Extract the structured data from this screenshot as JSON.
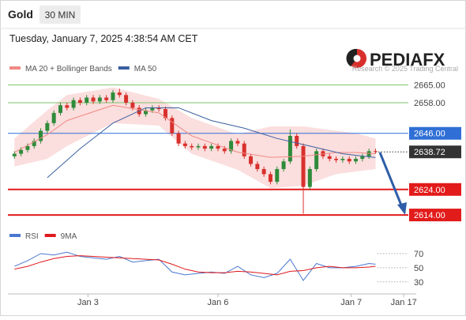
{
  "header": {
    "symbol": "Gold",
    "timeframe": "30 MIN",
    "timestamp": "Tuesday, January 7, 2025 4:38:54 AM CET"
  },
  "branding": {
    "logo": "PEDIAFX",
    "copyright": "Research © 2025 Trading Central"
  },
  "chart_data": [
    {
      "type": "candlestick",
      "open": [
        2637,
        2638,
        2639.5,
        2641,
        2643,
        2647,
        2650,
        2654,
        2657,
        2656,
        2659,
        2658,
        2660,
        2658.5,
        2660,
        2659,
        2662,
        2661,
        2658,
        2656,
        2653.5,
        2655,
        2656,
        2655.5,
        2652,
        2646,
        2642,
        2641,
        2640.5,
        2641,
        2640,
        2641,
        2640,
        2639,
        2643,
        2642,
        2637,
        2634,
        2632,
        2630,
        2627,
        2632,
        2635,
        2645,
        2641,
        2625,
        2632,
        2639,
        2637,
        2636,
        2635.5,
        2636,
        2635,
        2636,
        2637,
        2639
      ],
      "high": [
        2639,
        2640.5,
        2642,
        2644,
        2648,
        2651,
        2655,
        2658,
        2658,
        2660,
        2660,
        2661,
        2661,
        2661,
        2661,
        2663,
        2663.5,
        2662,
        2659,
        2657,
        2656,
        2657,
        2657,
        2656.5,
        2653,
        2647,
        2643,
        2642,
        2642,
        2642,
        2642,
        2642,
        2641,
        2644,
        2644,
        2643,
        2638,
        2635,
        2633,
        2631,
        2633,
        2636,
        2647.5,
        2646,
        2642,
        2633,
        2640,
        2640,
        2638,
        2637,
        2637,
        2637,
        2637,
        2638,
        2640,
        2640
      ],
      "low": [
        2636,
        2637,
        2638.5,
        2640,
        2642,
        2646,
        2649,
        2653,
        2655,
        2655,
        2657,
        2657,
        2657.5,
        2657.5,
        2658,
        2658,
        2660,
        2657,
        2655,
        2652.5,
        2652.5,
        2654,
        2654.5,
        2651,
        2645,
        2641,
        2640,
        2639.5,
        2639.5,
        2639,
        2639,
        2639,
        2638,
        2638,
        2641,
        2636,
        2633,
        2631,
        2629,
        2626,
        2626,
        2631,
        2634,
        2640,
        2614.5,
        2624,
        2631,
        2636,
        2635,
        2634.5,
        2634.5,
        2634,
        2634,
        2635,
        2636,
        2638
      ],
      "close": [
        2638,
        2639.5,
        2641,
        2643,
        2647,
        2650,
        2654,
        2657,
        2656,
        2659,
        2658,
        2660,
        2658.5,
        2660,
        2659,
        2662,
        2661,
        2658,
        2656,
        2653.5,
        2655,
        2656,
        2655.5,
        2652,
        2646,
        2642,
        2641,
        2640.5,
        2641,
        2640,
        2641,
        2640,
        2639,
        2643,
        2642,
        2637,
        2634,
        2632,
        2630,
        2627,
        2632,
        2635,
        2645,
        2641,
        2625,
        2632,
        2639,
        2637,
        2636,
        2635.5,
        2636,
        2635,
        2636,
        2637,
        2639,
        2638.72
      ],
      "up_color": "#2e8b3a",
      "down_color": "#d8302c",
      "series": [
        {
          "name": "MA 20 + Bollinger Bands",
          "color": "#f08a84",
          "band_color": "#fbdede",
          "x": [
            0,
            5,
            8,
            15,
            22,
            27,
            34,
            39,
            44,
            49,
            52,
            55
          ],
          "values": [
            2638.5,
            2645.5,
            2651,
            2657,
            2654,
            2645,
            2638.6,
            2636.6,
            2637,
            2638.5,
            2638.5,
            2638
          ],
          "upper": [
            2644,
            2655,
            2661,
            2664,
            2659.5,
            2652,
            2645.6,
            2648.7,
            2648.7,
            2647,
            2646,
            2644
          ],
          "lower": [
            2633,
            2636,
            2641,
            2650,
            2649,
            2638,
            2631.7,
            2624.5,
            2625.5,
            2630,
            2631,
            2632
          ]
        },
        {
          "name": "MA 50",
          "color": "#3a5fa0",
          "x": [
            5,
            10,
            15,
            20,
            25,
            30,
            35,
            40,
            45,
            50,
            55
          ],
          "values": [
            2628.6,
            2640,
            2650,
            2656,
            2656,
            2651,
            2648,
            2644,
            2641,
            2638,
            2636.5
          ]
        }
      ],
      "levels": [
        {
          "value": 2665,
          "label": "2665.00",
          "color": "#7cc26a",
          "style": "thin"
        },
        {
          "value": 2658,
          "label": "2658.00",
          "color": "#7cc26a",
          "style": "thin"
        },
        {
          "value": 2646,
          "label": "2646.00",
          "color": "#2f6fd6",
          "style": "boxed"
        },
        {
          "value": 2638.72,
          "label": "2638.72",
          "color": "#333333",
          "style": "dotted"
        },
        {
          "value": 2624,
          "label": "2624.00",
          "color": "#e21b1b",
          "style": "thick"
        },
        {
          "value": 2614,
          "label": "2614.00",
          "color": "#e21b1b",
          "style": "thick"
        }
      ],
      "ylim": [
        2610,
        2671
      ],
      "xlim": [
        -1,
        60
      ],
      "xticks": [
        {
          "value": 11.2,
          "label": "Jan 3"
        },
        {
          "value": 31,
          "label": "Jan 6"
        },
        {
          "value": 51.3,
          "label": "Jan 7"
        },
        {
          "value": 59.3,
          "label": "Jan 17"
        }
      ]
    },
    {
      "type": "line",
      "series": [
        {
          "name": "RSI",
          "color": "#4a78d0",
          "x": [
            0,
            2,
            4,
            6,
            8,
            10,
            12,
            14,
            16,
            18,
            20,
            22,
            24,
            26,
            28,
            30,
            32,
            34,
            36,
            38,
            40,
            42,
            44,
            46,
            48,
            50,
            52,
            54,
            55
          ],
          "values": [
            52,
            60,
            70,
            68,
            72,
            66,
            64,
            62,
            66,
            58,
            60,
            62,
            44,
            40,
            42,
            44,
            42,
            52,
            40,
            36,
            42,
            62,
            32,
            56,
            50,
            50,
            52,
            56,
            55
          ]
        },
        {
          "name": "9MA",
          "color": "#e0191d",
          "x": [
            0,
            2,
            4,
            6,
            8,
            10,
            12,
            14,
            16,
            18,
            20,
            22,
            24,
            26,
            28,
            30,
            32,
            34,
            36,
            38,
            40,
            42,
            44,
            46,
            48,
            50,
            52,
            54,
            55
          ],
          "values": [
            48,
            52,
            58,
            63,
            66,
            67,
            66,
            65,
            64,
            63,
            62,
            61,
            55,
            48,
            44,
            43,
            43,
            45,
            44,
            42,
            40,
            45,
            46,
            50,
            52,
            50,
            50,
            51,
            52
          ]
        }
      ],
      "ylim": [
        13,
        99
      ],
      "xlim": [
        -1,
        60
      ],
      "yticks": [
        30,
        50,
        70
      ]
    }
  ]
}
